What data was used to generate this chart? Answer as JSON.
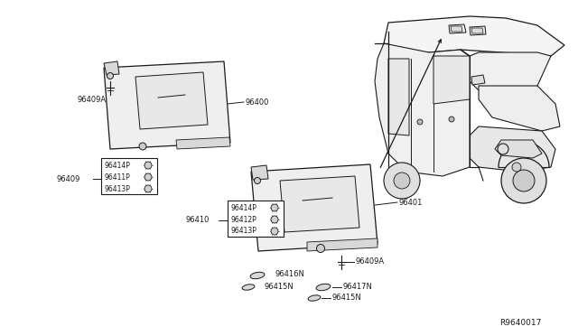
{
  "bg_color": "#ffffff",
  "line_color": "#1a1a1a",
  "text_color": "#1a1a1a",
  "fig_width": 6.4,
  "fig_height": 3.72,
  "diagram_id": "R9640017",
  "box_left": [
    "96414P",
    "96411P",
    "96413P"
  ],
  "box_right": [
    "96414P",
    "96412P",
    "96413P"
  ],
  "label_96400": "96400",
  "label_96401": "96401",
  "label_96409": "96409",
  "label_96409A_1": "96409A",
  "label_96409A_2": "96409A",
  "label_96410": "96410",
  "label_96416N": "96416N",
  "label_96415N_1": "96415N",
  "label_96417N": "96417N",
  "label_96415N_2": "96415N",
  "diagram_ref": "R9640017"
}
